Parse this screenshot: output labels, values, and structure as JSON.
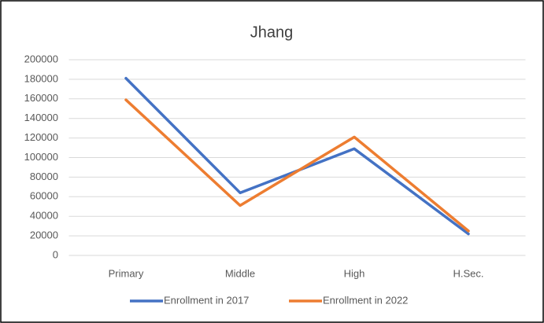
{
  "chart_data": {
    "type": "line",
    "title": "Jhang",
    "categories": [
      "Primary",
      "Middle",
      "High",
      "H.Sec."
    ],
    "series": [
      {
        "name": "Enrollment in 2017",
        "color": "#4472c4",
        "values": [
          181000,
          64000,
          109000,
          22000
        ]
      },
      {
        "name": "Enrollment in 2022",
        "color": "#ed7d31",
        "values": [
          159000,
          51000,
          121000,
          25000
        ]
      }
    ],
    "ylim": [
      0,
      200000
    ],
    "yticks": [
      0,
      20000,
      40000,
      60000,
      80000,
      100000,
      120000,
      140000,
      160000,
      180000,
      200000
    ],
    "grid": true,
    "legend": "bottom"
  }
}
